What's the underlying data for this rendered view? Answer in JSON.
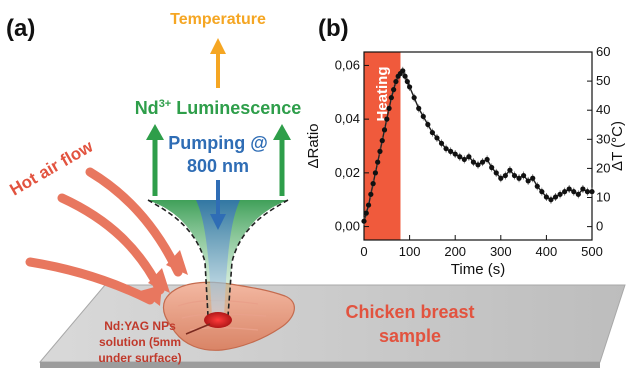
{
  "panel_a": {
    "label": "(a)",
    "temperature": "Temperature",
    "luminescence": "Nd",
    "luminescence_sup": "3+",
    "luminescence_rest": " Luminescence",
    "pumping_line1": "Pumping @",
    "pumping_line2": "800 nm",
    "hot_air": "Hot air flow",
    "sample_line1": "Chicken breast",
    "sample_line2": "sample",
    "np_line1": "Nd:YAG NPs",
    "np_line2": "solution (5mm",
    "np_line3": "under surface)",
    "colors": {
      "temperature": "#f5a623",
      "luminescence": "#2e9e4a",
      "pumping": "#2f6db5",
      "hot_air": "#e2533f",
      "sample_text": "#e2533f",
      "np_text": "#c0392b"
    }
  },
  "panel_b": {
    "label": "(b)",
    "heating_label": "Heating",
    "xlabel": "Time (s)",
    "ylabel_left": "ΔRatio",
    "ylabel_right": "ΔT (°C)",
    "x_ticks": [
      "0",
      "100",
      "200",
      "300",
      "400",
      "500"
    ],
    "y_left_ticks": [
      "0,00",
      "0,02",
      "0,04",
      "0,06"
    ],
    "y_right_ticks": [
      "0",
      "10",
      "20",
      "30",
      "40",
      "50",
      "60"
    ],
    "heating_color": "#f05a3c"
  },
  "chart_data": {
    "type": "scatter",
    "title": "",
    "xlabel": "Time (s)",
    "ylabel": "ΔRatio",
    "ylabel_right": "ΔT (°C)",
    "xlim": [
      0,
      500
    ],
    "ylim": [
      -0.005,
      0.065
    ],
    "ylim_right": [
      -4.6,
      60
    ],
    "shaded_region": {
      "label": "Heating",
      "x": [
        0,
        80
      ]
    },
    "grid": false,
    "series": [
      {
        "points": [
          [
            0,
            0.002
          ],
          [
            5,
            0.005
          ],
          [
            10,
            0.008
          ],
          [
            15,
            0.012
          ],
          [
            20,
            0.016
          ],
          [
            25,
            0.02
          ],
          [
            30,
            0.024
          ],
          [
            35,
            0.028
          ],
          [
            40,
            0.032
          ],
          [
            45,
            0.036
          ],
          [
            50,
            0.04
          ],
          [
            55,
            0.044
          ],
          [
            60,
            0.048
          ],
          [
            65,
            0.051
          ],
          [
            70,
            0.054
          ],
          [
            75,
            0.056
          ],
          [
            80,
            0.057
          ],
          [
            85,
            0.058
          ],
          [
            90,
            0.056
          ],
          [
            95,
            0.054
          ],
          [
            100,
            0.052
          ],
          [
            110,
            0.048
          ],
          [
            120,
            0.044
          ],
          [
            130,
            0.041
          ],
          [
            140,
            0.038
          ],
          [
            150,
            0.035
          ],
          [
            160,
            0.033
          ],
          [
            170,
            0.031
          ],
          [
            180,
            0.029
          ],
          [
            190,
            0.028
          ],
          [
            200,
            0.027
          ],
          [
            210,
            0.026
          ],
          [
            220,
            0.025
          ],
          [
            230,
            0.026
          ],
          [
            240,
            0.024
          ],
          [
            250,
            0.023
          ],
          [
            260,
            0.024
          ],
          [
            270,
            0.025
          ],
          [
            280,
            0.022
          ],
          [
            290,
            0.02
          ],
          [
            300,
            0.018
          ],
          [
            310,
            0.019
          ],
          [
            320,
            0.021
          ],
          [
            330,
            0.019
          ],
          [
            340,
            0.018
          ],
          [
            350,
            0.019
          ],
          [
            360,
            0.017
          ],
          [
            370,
            0.018
          ],
          [
            380,
            0.015
          ],
          [
            390,
            0.013
          ],
          [
            400,
            0.011
          ],
          [
            410,
            0.01
          ],
          [
            420,
            0.011
          ],
          [
            430,
            0.012
          ],
          [
            440,
            0.013
          ],
          [
            450,
            0.014
          ],
          [
            460,
            0.013
          ],
          [
            470,
            0.012
          ],
          [
            480,
            0.014
          ],
          [
            490,
            0.013
          ],
          [
            500,
            0.013
          ]
        ]
      }
    ]
  }
}
